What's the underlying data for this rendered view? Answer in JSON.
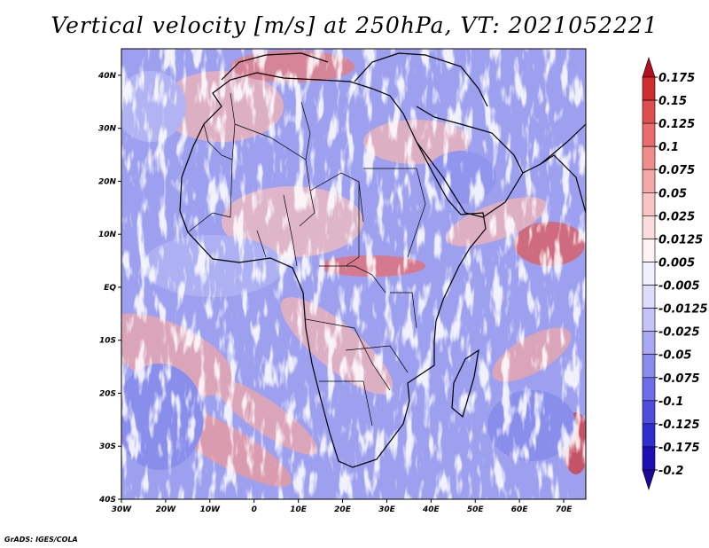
{
  "title": "Vertical velocity [m/s] at 250hPa, VT: 2021052221",
  "credit": "GrADS: IGES/COLA",
  "map": {
    "lat_labels": [
      "40N",
      "30N",
      "20N",
      "10N",
      "EQ",
      "10S",
      "20S",
      "30S",
      "40S"
    ],
    "lat_values": [
      40,
      30,
      20,
      10,
      0,
      -10,
      -20,
      -30,
      -40
    ],
    "lon_labels": [
      "30W",
      "20W",
      "10W",
      "0",
      "10E",
      "20E",
      "30E",
      "40E",
      "50E",
      "60E",
      "70E"
    ],
    "lon_values": [
      -30,
      -20,
      -10,
      0,
      10,
      20,
      30,
      40,
      50,
      60,
      70
    ],
    "lon_range": [
      -30,
      75
    ],
    "lat_range": [
      -40,
      45
    ]
  },
  "colorbar": {
    "labels": [
      "0.175",
      "0.15",
      "0.125",
      "0.1",
      "0.075",
      "0.05",
      "0.025",
      "0.0125",
      "0.005",
      "-0.005",
      "-0.0125",
      "-0.025",
      "-0.05",
      "-0.075",
      "-0.1",
      "-0.125",
      "-0.175",
      "-0.2"
    ],
    "colors": [
      "#b40f1e",
      "#d12d2d",
      "#e04d4d",
      "#ea6d6d",
      "#f08c8c",
      "#f4a8a8",
      "#f8c4c4",
      "#fbdcdc",
      "#fef2f2",
      "#f0f0fe",
      "#dcdcfc",
      "#c4c4f8",
      "#a8a8f4",
      "#8c8cf0",
      "#6d6dea",
      "#4d4de0",
      "#2d2dd1",
      "#1e0fb4",
      "#1a0a96"
    ]
  }
}
